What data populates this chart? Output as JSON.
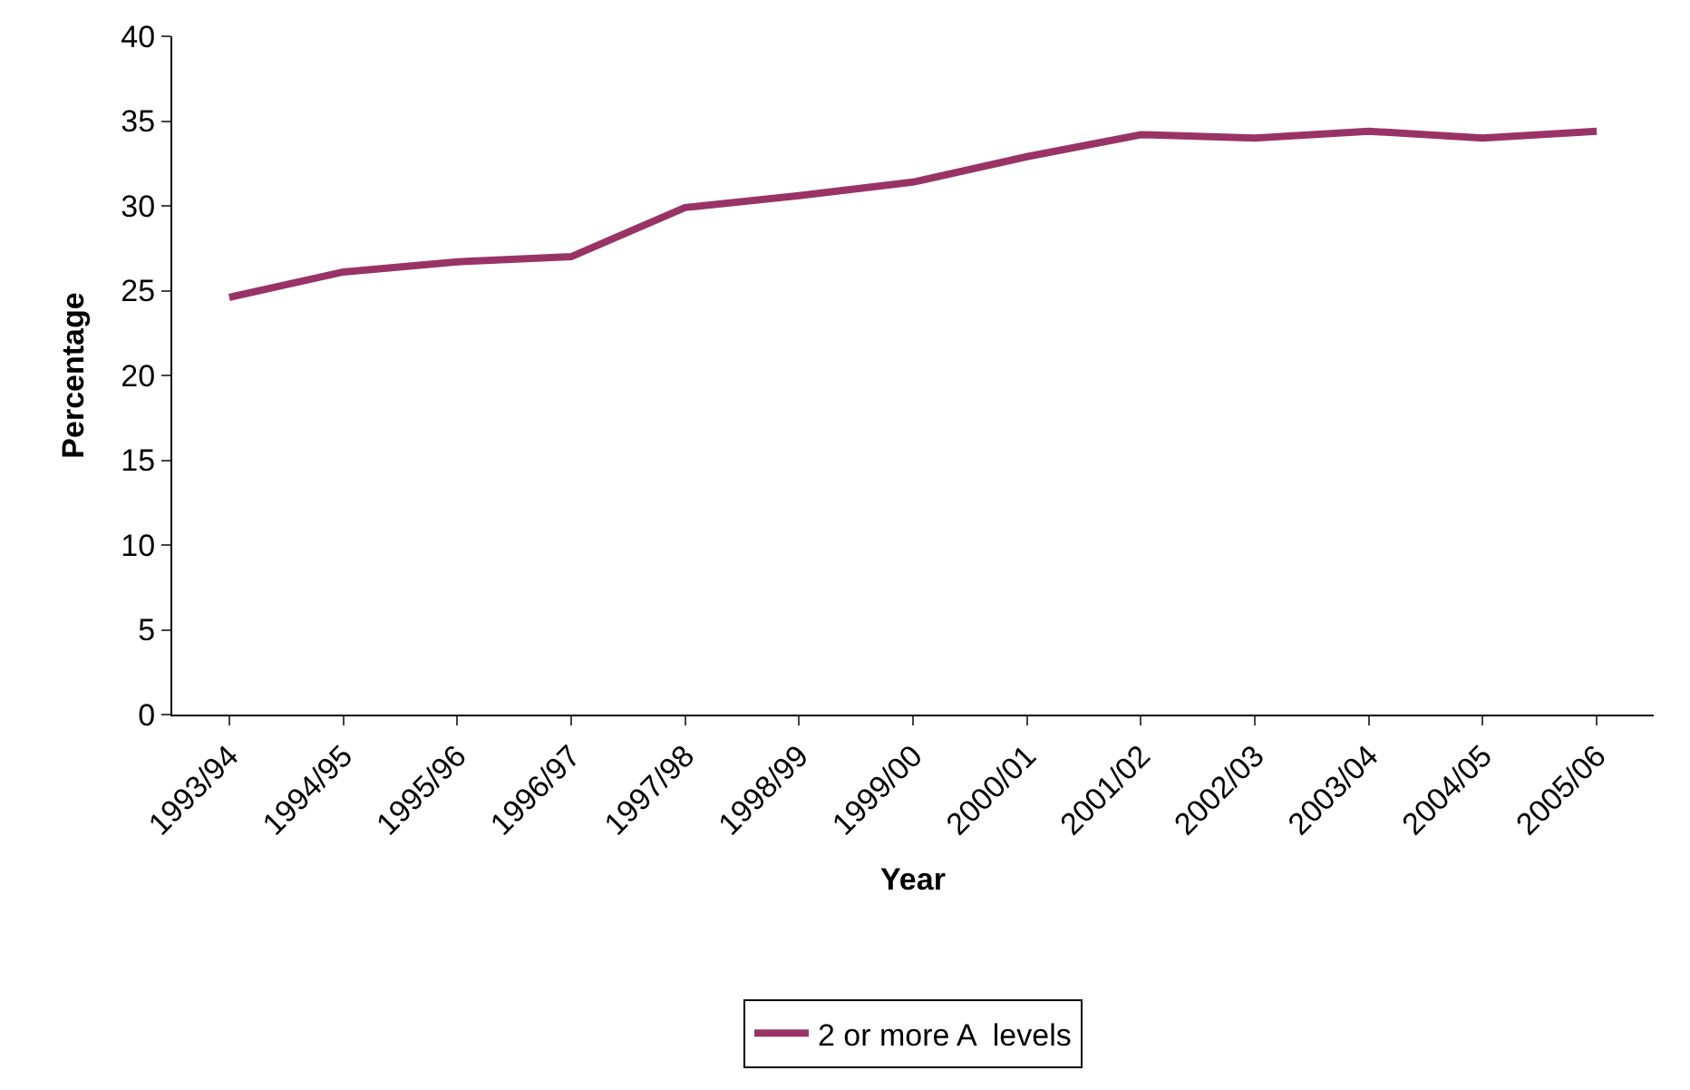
{
  "chart_data": {
    "type": "line",
    "xlabel": "Year",
    "ylabel": "Percentage",
    "categories": [
      "1993/94",
      "1994/95",
      "1995/96",
      "1996/97",
      "1997/98",
      "1998/99",
      "1999/00",
      "2000/01",
      "2001/02",
      "2002/03",
      "2003/04",
      "2004/05",
      "2005/06"
    ],
    "series": [
      {
        "name": "2 or more A  levels",
        "color": "#993366",
        "values": [
          24.6,
          26.1,
          26.7,
          27.0,
          29.9,
          30.6,
          31.4,
          32.9,
          34.2,
          34.0,
          34.4,
          34.0,
          34.4
        ]
      }
    ],
    "ylim": [
      0,
      40
    ],
    "yticks": [
      0,
      5,
      10,
      15,
      20,
      25,
      30,
      35,
      40
    ],
    "legend": "bottom",
    "marker": "none",
    "line_style": "solid"
  }
}
